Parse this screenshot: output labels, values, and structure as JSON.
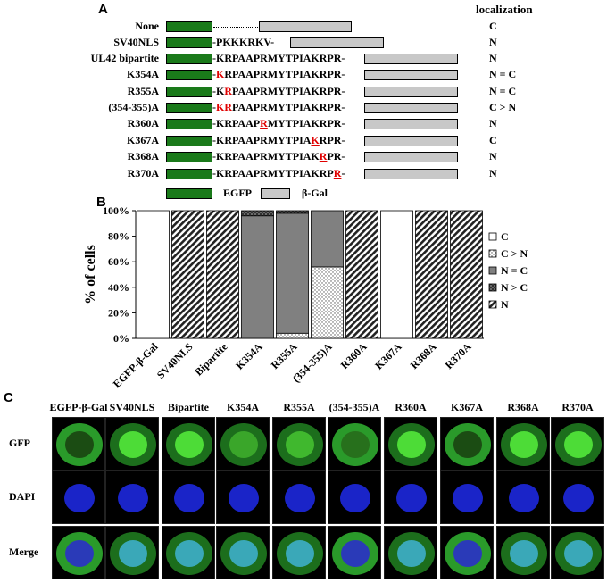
{
  "panel_a": {
    "letter": "A",
    "localization_header": "localization",
    "rows": [
      {
        "label": "None",
        "seq_pre": "",
        "seq_mut": "",
        "seq_post": "",
        "loc": "C"
      },
      {
        "label": "SV40NLS",
        "seq_pre": "PKKKRKV",
        "seq_mut": "",
        "seq_post": "",
        "loc": "N"
      },
      {
        "label": "UL42 bipartite",
        "seq_pre": "KRPAAPRMYTPIAKRPR",
        "seq_mut": "",
        "seq_post": "",
        "loc": "N"
      },
      {
        "label": "K354A",
        "seq_pre": "",
        "seq_mut": "K",
        "seq_post": "RPAAPRMYTPIAKRPR",
        "loc": "N = C"
      },
      {
        "label": "R355A",
        "seq_pre": "K",
        "seq_mut": "R",
        "seq_post": "PAAPRMYTPIAKRPR",
        "loc": "N = C"
      },
      {
        "label": "(354-355)A",
        "seq_pre": "",
        "seq_mut": "KR",
        "seq_post": "PAAPRMYTPIAKRPR",
        "loc": "C > N"
      },
      {
        "label": "R360A",
        "seq_pre": "KRPAAP",
        "seq_mut": "R",
        "seq_post": "MYTPIAKRPR",
        "loc": "N"
      },
      {
        "label": "K367A",
        "seq_pre": "KRPAAPRMYTPIA",
        "seq_mut": "K",
        "seq_post": "RPR",
        "loc": "C"
      },
      {
        "label": "R368A",
        "seq_pre": "KRPAAPRMYTPIAK",
        "seq_mut": "R",
        "seq_post": "PR",
        "loc": "N"
      },
      {
        "label": "R370A",
        "seq_pre": "KRPAAPRMYTPIAKRP",
        "seq_mut": "R",
        "seq_post": "",
        "loc": "N"
      }
    ],
    "legend": {
      "egfp": "EGFP",
      "bgal": "β-Gal"
    },
    "colors": {
      "egfp": "#1a7a1a",
      "bgal": "#c8c8c8",
      "mutation": "#e00000"
    }
  },
  "panel_b": {
    "letter": "B",
    "chart_data": {
      "type": "bar",
      "stacked": true,
      "ylabel": "% of cells",
      "ylim": [
        0,
        100
      ],
      "yticks": [
        "0%",
        "20%",
        "40%",
        "60%",
        "80%",
        "100%"
      ],
      "categories": [
        "EGFP-β-Gal",
        "SV40NLS",
        "Bipartite",
        "K354A",
        "R355A",
        "(354-355)A",
        "R360A",
        "K367A",
        "R368A",
        "R370A"
      ],
      "series": [
        {
          "name": "C",
          "pattern": "white",
          "values": [
            100,
            0,
            0,
            0,
            0,
            0,
            0,
            100,
            0,
            0
          ]
        },
        {
          "name": "C > N",
          "pattern": "dots",
          "values": [
            0,
            0,
            0,
            0,
            4,
            56,
            0,
            0,
            0,
            0
          ]
        },
        {
          "name": "N = C",
          "pattern": "gray",
          "values": [
            0,
            0,
            0,
            96,
            94,
            44,
            0,
            0,
            0,
            0
          ]
        },
        {
          "name": "N > C",
          "pattern": "crosshatch",
          "values": [
            0,
            0,
            0,
            4,
            2,
            0,
            0,
            0,
            0,
            0
          ]
        },
        {
          "name": "N",
          "pattern": "diagonal",
          "values": [
            0,
            100,
            100,
            0,
            0,
            0,
            100,
            0,
            100,
            100
          ]
        }
      ]
    }
  },
  "panel_c": {
    "letter": "C",
    "columns": [
      "EGFP-β-Gal",
      "SV40NLS",
      "Bipartite",
      "K354A",
      "R355A",
      "(354-355)A",
      "R360A",
      "K367A",
      "R368A",
      "R370A"
    ],
    "rows": [
      "GFP",
      "DAPI",
      "Merge"
    ]
  }
}
